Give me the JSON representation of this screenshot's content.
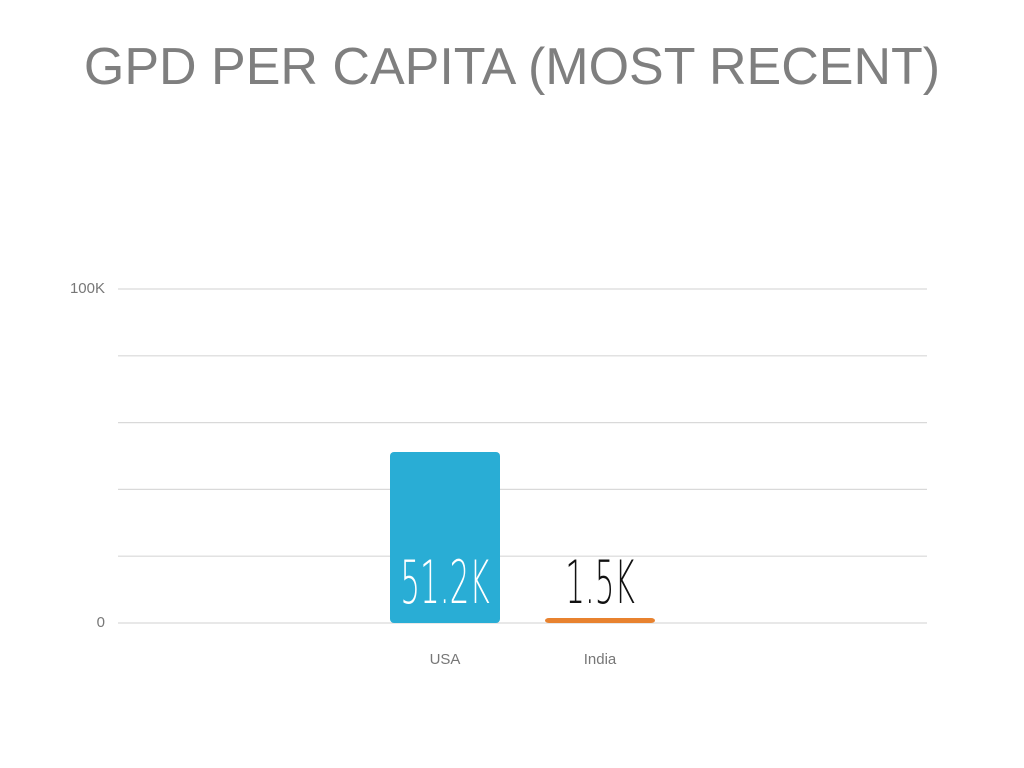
{
  "chart_data": {
    "type": "bar",
    "title": "GPD PER CAPITA (MOST RECENT)",
    "categories": [
      "USA",
      "India"
    ],
    "values": [
      51200,
      1500
    ],
    "value_labels": [
      "51.2K",
      "1.5K"
    ],
    "colors": [
      "#29add5",
      "#e8822f"
    ],
    "value_label_colors": [
      "#ffffff",
      "#111111"
    ],
    "ylim": [
      0,
      100000
    ],
    "yticks": [
      0,
      {
        "value": 20000,
        "label": null
      },
      {
        "value": 40000,
        "label": null
      },
      {
        "value": 60000,
        "label": null
      },
      {
        "value": 80000,
        "label": null
      },
      {
        "value": 100000,
        "label": "100K"
      }
    ],
    "grid": true
  }
}
